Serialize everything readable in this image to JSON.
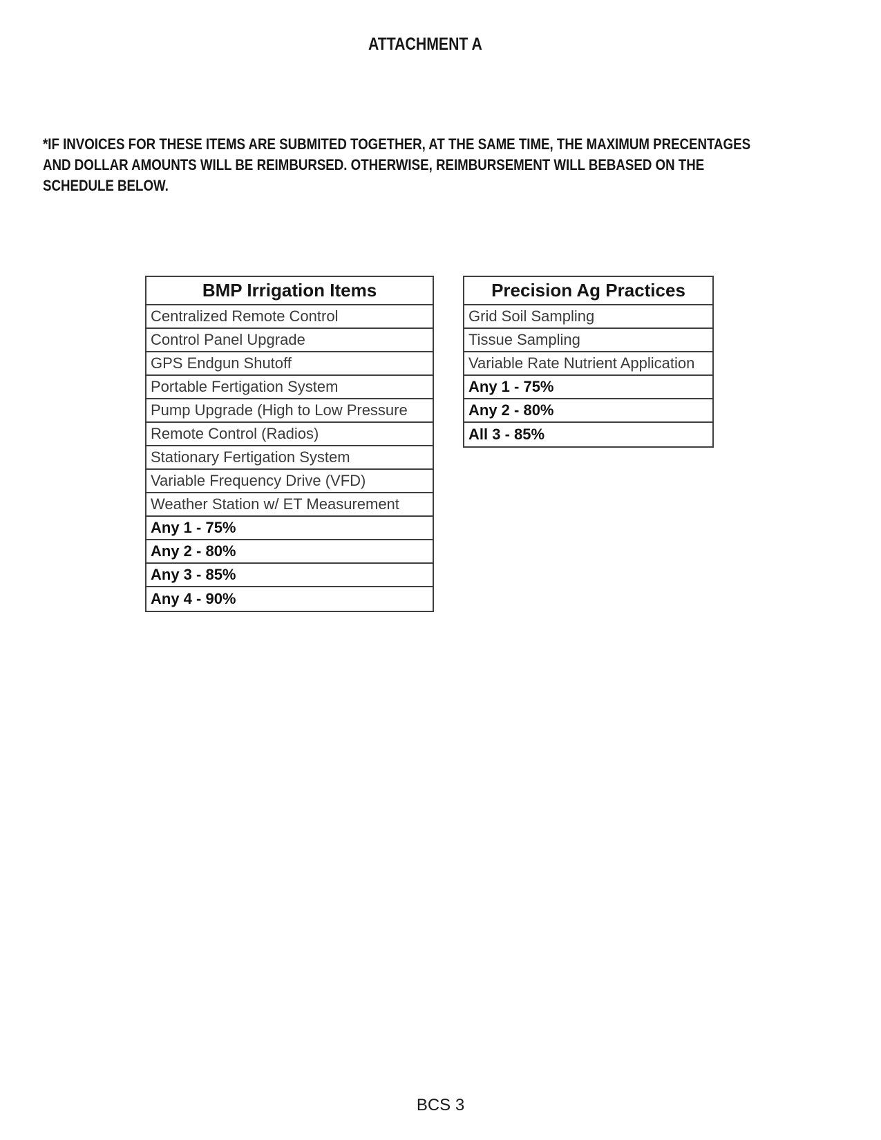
{
  "page": {
    "title": "ATTACHMENT A",
    "footer": "BCS 3"
  },
  "notice": {
    "lines": [
      "*IF INVOICES FOR THESE ITEMS ARE SUBMITED TOGETHER, AT THE SAME TIME, THE MAXIMUM PRECENTAGES",
      "AND DOLLAR AMOUNTS WILL BE REIMBURSED. OTHERWISE, REIMBURSEMENT WILL BEBASED ON THE",
      "SCHEDULE BELOW."
    ]
  },
  "tables": {
    "bmp": {
      "header": "BMP Irrigation Items",
      "items": [
        "Centralized Remote Control",
        "Control Panel Upgrade",
        "GPS Endgun Shutoff",
        "Portable Fertigation System",
        "Pump Upgrade (High to Low Pressure",
        "Remote Control (Radios)",
        "Stationary Fertigation System",
        "Variable Frequency Drive (VFD)",
        "Weather Station w/ ET Measurement"
      ],
      "schedule": [
        "Any 1 - 75%",
        "Any 2 - 80%",
        "Any 3 - 85%",
        "Any 4 - 90%"
      ]
    },
    "precision": {
      "header": "Precision Ag Practices",
      "items": [
        "Grid Soil Sampling",
        "Tissue Sampling",
        "Variable Rate Nutrient Application"
      ],
      "schedule": [
        "Any 1 - 75%",
        "Any 2 - 80%",
        "All 3 - 85%"
      ]
    }
  },
  "colors": {
    "table_border": "#3f3f3f",
    "cell_text": "#3a3a3a",
    "emphasis_text": "#101010",
    "page_background": "#ffffff"
  }
}
